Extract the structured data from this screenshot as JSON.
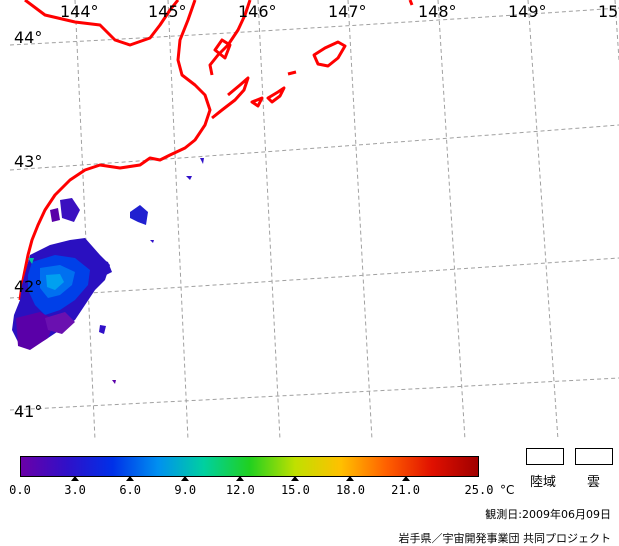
{
  "map": {
    "lon_labels": [
      "144°",
      "145°",
      "146°",
      "147°",
      "148°",
      "149°",
      "15"
    ],
    "lat_labels": [
      "44°",
      "43°",
      "42°",
      "41°"
    ],
    "colors": {
      "coastline": "#ff0000",
      "grid": "#a0a0a0",
      "data_low": "#5000a0",
      "data_mid": "#0030e0"
    }
  },
  "colorbar": {
    "ticks": [
      "0.0",
      "3.0",
      "6.0",
      "9.0",
      "12.0",
      "15.0",
      "18.0",
      "21.0",
      "25.0"
    ],
    "unit": "°C",
    "gradient": [
      "#6a00a8",
      "#3010c8",
      "#0030e8",
      "#0090f0",
      "#00d0a0",
      "#20d020",
      "#c0e000",
      "#ffc000",
      "#ff6000",
      "#e01000",
      "#a00000"
    ]
  },
  "legend": {
    "land_label": "陸域",
    "cloud_label": "雲"
  },
  "footer": {
    "observation_date": "観測日:2009年06月09日",
    "credit": "岩手県／宇宙開発事業団 共同プロジェクト"
  }
}
